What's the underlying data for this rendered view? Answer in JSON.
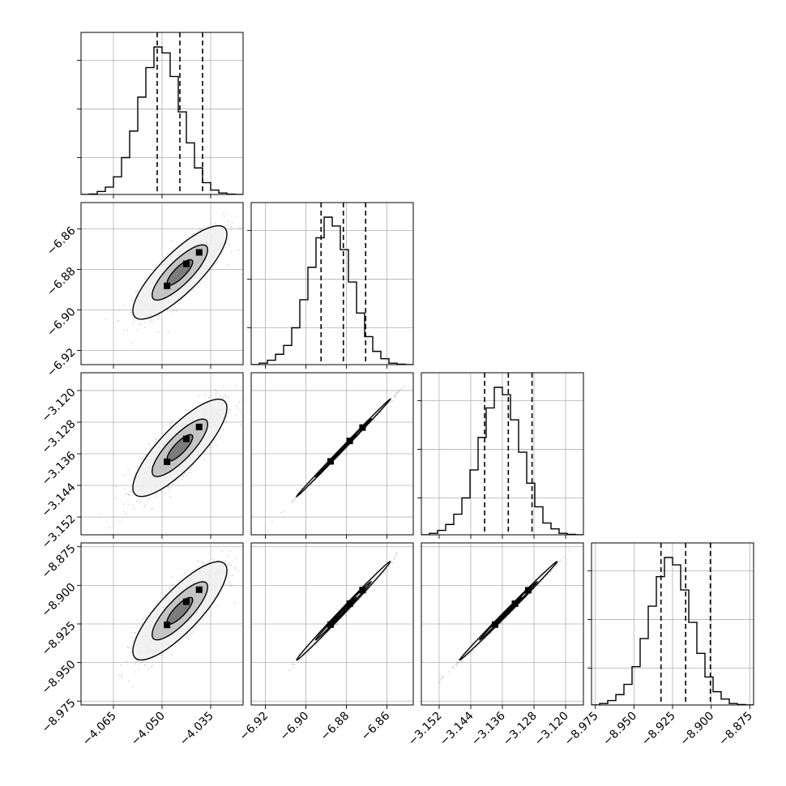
{
  "chart_data": {
    "type": "corner",
    "description": "Corner plot of 4 parameters: 1D marginal histograms on diagonal, 2D density contours with scatter off-diagonal",
    "grid": true,
    "colors": {
      "line": "#000000",
      "scatter": "#6f6f6f",
      "grid": "#b0b0b0",
      "fill_low": "#f0f0f0",
      "fill_mid": "#bdbdbd",
      "fill_high": "#6e6e6e"
    },
    "parameters": [
      {
        "axis_range": [
          -4.075,
          -4.025
        ],
        "ticks": [
          -4.065,
          -4.05,
          -4.035
        ],
        "tick_labels": [
          "−4.065",
          "−4.050",
          "−4.035"
        ],
        "mean": -4.0445,
        "sigma": 0.0066,
        "quantiles": [
          -4.0515,
          -4.0445,
          -4.0375
        ],
        "histogram": [
          0,
          0.003,
          0.02,
          0.05,
          0.12,
          0.25,
          0.43,
          0.66,
          0.86,
          1.0,
          0.96,
          0.8,
          0.56,
          0.35,
          0.18,
          0.08,
          0.03,
          0.01,
          0.002,
          0
        ]
      },
      {
        "axis_range": [
          -6.927,
          -6.847
        ],
        "ticks": [
          -6.92,
          -6.9,
          -6.88,
          -6.86
        ],
        "tick_labels": [
          "−6.92",
          "−6.90",
          "−6.88",
          "−6.86"
        ],
        "mean": -6.8815,
        "sigma": 0.0105,
        "quantiles": [
          -6.8925,
          -6.8815,
          -6.8705
        ],
        "histogram": [
          0,
          0.01,
          0.03,
          0.07,
          0.13,
          0.25,
          0.44,
          0.66,
          0.86,
          1.0,
          0.94,
          0.78,
          0.56,
          0.35,
          0.19,
          0.09,
          0.04,
          0.01,
          0.003,
          0
        ]
      },
      {
        "axis_range": [
          -3.1565,
          -3.1155
        ],
        "ticks": [
          -3.152,
          -3.144,
          -3.136,
          -3.128,
          -3.12
        ],
        "tick_labels": [
          "−3.152",
          "−3.144",
          "−3.136",
          "−3.128",
          "−3.120"
        ],
        "mean": -3.1345,
        "sigma": 0.0056,
        "quantiles": [
          -3.1405,
          -3.1345,
          -3.1285
        ],
        "histogram": [
          0,
          0.01,
          0.03,
          0.07,
          0.14,
          0.25,
          0.44,
          0.66,
          0.86,
          1.0,
          0.95,
          0.78,
          0.56,
          0.35,
          0.19,
          0.08,
          0.04,
          0.01,
          0.003,
          0
        ]
      },
      {
        "axis_range": [
          -8.9775,
          -8.8725
        ],
        "ticks": [
          -8.975,
          -8.95,
          -8.925,
          -8.9,
          -8.875
        ],
        "tick_labels": [
          "−8.975",
          "−8.950",
          "−8.925",
          "−8.900",
          "−8.875"
        ],
        "mean": -8.9165,
        "sigma": 0.0145,
        "quantiles": [
          -8.9325,
          -8.9165,
          -8.9005
        ],
        "histogram": [
          0,
          0.01,
          0.03,
          0.07,
          0.14,
          0.26,
          0.45,
          0.67,
          0.87,
          1.0,
          0.95,
          0.78,
          0.56,
          0.35,
          0.19,
          0.09,
          0.04,
          0.01,
          0.003,
          0
        ]
      }
    ],
    "correlations": {
      "1-0": 0.82,
      "2-0": 0.82,
      "3-0": 0.82,
      "2-1": 0.999,
      "3-1": 0.997,
      "3-2": 0.998
    }
  }
}
